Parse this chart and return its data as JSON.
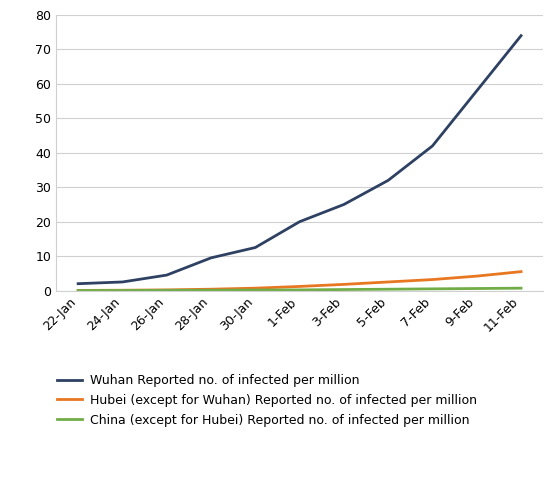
{
  "x_labels": [
    "22-Jan",
    "24-Jan",
    "26-Jan",
    "28-Jan",
    "30-Jan",
    "1-Feb",
    "3-Feb",
    "5-Feb",
    "7-Feb",
    "9-Feb",
    "11-Feb"
  ],
  "wuhan": [
    2.0,
    2.5,
    4.5,
    9.5,
    12.5,
    20.0,
    25.0,
    32.0,
    42.0,
    58.0,
    74.0
  ],
  "hubei": [
    0.05,
    0.1,
    0.2,
    0.4,
    0.7,
    1.2,
    1.8,
    2.5,
    3.2,
    4.2,
    5.5
  ],
  "china": [
    0.02,
    0.04,
    0.07,
    0.1,
    0.15,
    0.2,
    0.3,
    0.4,
    0.5,
    0.6,
    0.7
  ],
  "wuhan_color": "#2E4163",
  "hubei_color": "#E87722",
  "china_color": "#70AD47",
  "wuhan_label": "Wuhan Reported no. of infected per million",
  "hubei_label": "Hubei (except for Wuhan) Reported no. of infected per million",
  "china_label": "China (except for Hubei) Reported no. of infected per million",
  "ylim": [
    0,
    80
  ],
  "yticks": [
    0,
    10,
    20,
    30,
    40,
    50,
    60,
    70,
    80
  ],
  "background_color": "#ffffff",
  "grid_color": "#d0d0d0",
  "line_width": 2.0,
  "tick_fontsize": 9,
  "legend_fontsize": 9
}
